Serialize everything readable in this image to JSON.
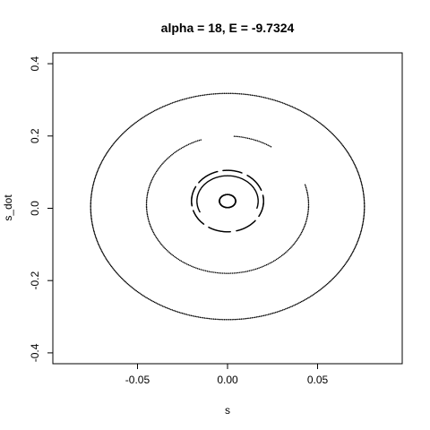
{
  "chart_data": {
    "type": "scatter",
    "title": "alpha = 18, E = -9.7324",
    "xlabel": "s",
    "ylabel": "s_dot",
    "xlim": [
      -0.097,
      0.097
    ],
    "ylim": [
      -0.43,
      0.43
    ],
    "grid": false,
    "x_ticks": [
      -0.05,
      0.0,
      0.05
    ],
    "x_tick_labels": [
      "-0.05",
      "0.00",
      "0.05"
    ],
    "y_ticks": [
      -0.4,
      -0.2,
      0.0,
      0.2,
      0.4
    ],
    "y_tick_labels": [
      "-0.4",
      "-0.2",
      "0.0",
      "0.2",
      "0.4"
    ],
    "series": [
      {
        "shape": "ellipse",
        "cx": 0.0,
        "cy": 0.005,
        "rx": 0.076,
        "ry": 0.313,
        "points": 560,
        "gaps": []
      },
      {
        "shape": "ellipse",
        "cx": 0.0,
        "cy": 0.01,
        "rx": 0.045,
        "ry": 0.19,
        "points": 300,
        "gaps": [
          [
            0.3,
            1.0
          ],
          [
            1.5,
            1.9
          ]
        ]
      },
      {
        "shape": "ellipse",
        "cx": 0.0,
        "cy": 0.02,
        "rx": 0.02,
        "ry": 0.085,
        "points": 400,
        "gaps": [
          [
            0.2,
            0.35
          ],
          [
            1.0,
            1.15
          ],
          [
            1.7,
            1.85
          ],
          [
            2.5,
            2.65
          ],
          [
            3.3,
            3.45
          ],
          [
            4.0,
            4.15
          ],
          [
            4.8,
            4.95
          ],
          [
            5.6,
            5.75
          ]
        ]
      },
      {
        "shape": "ellipse",
        "cx": 0.0,
        "cy": 0.02,
        "rx": 0.017,
        "ry": 0.07,
        "points": 200,
        "gaps": [
          [
            3.6,
            6.0
          ]
        ]
      },
      {
        "shape": "ellipse",
        "cx": 0.0,
        "cy": 0.02,
        "rx": 0.0045,
        "ry": 0.018,
        "points": 300,
        "gaps": []
      }
    ]
  }
}
